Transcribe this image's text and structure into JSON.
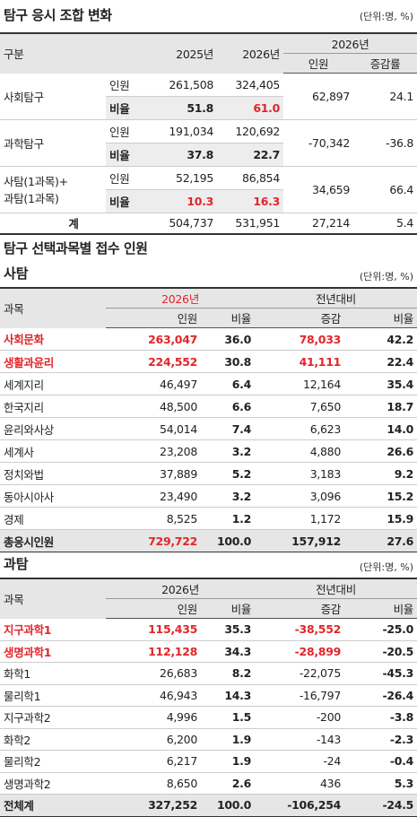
{
  "section1": {
    "title": "탐구 응시 조합 변화",
    "unit": "(단위:명, %)",
    "table": {
      "header": [
        "구분",
        "2025년",
        "2026년",
        "2026년",
        "인원",
        "증감률"
      ],
      "rows": [
        {
          "label": [
            "사회탐구"
          ],
          "sub": [
            [
              "인원",
              "261,508",
              "324,405"
            ],
            [
              "비율",
              "51.8",
              "61.0"
            ]
          ],
          "change": [
            "62,897",
            "24.1"
          ]
        },
        {
          "label": [
            "과학탐구"
          ],
          "sub": [
            [
              "인원",
              "191,034",
              "120,692"
            ],
            [
              "비율",
              "37.8",
              "22.7"
            ]
          ],
          "change": [
            "-70,342",
            "-36.8"
          ]
        },
        {
          "label": [
            "사탐(1과목)+",
            "과탐(1과목)"
          ],
          "sub": [
            [
              "인원",
              "52,195",
              "86,854"
            ],
            [
              "비율",
              "10.3",
              "16.3"
            ]
          ],
          "change": [
            "34,659",
            "66.4"
          ]
        }
      ],
      "total": [
        "계",
        "504,737",
        "531,951",
        "27,214",
        "5.4"
      ]
    }
  },
  "section2": {
    "title": "탐구 선택과목별 접수 인원",
    "subtitle": "사탐",
    "unit": "(단위:명, %)",
    "table": {
      "header": [
        "과목",
        "2026년",
        "전년대비",
        "인원",
        "비율",
        "증감",
        "비율"
      ],
      "rows": [
        [
          "사회문화",
          "263,047",
          "36.0",
          "78,033",
          "42.2"
        ],
        [
          "생활과윤리",
          "224,552",
          "30.8",
          "41,111",
          "22.4"
        ],
        [
          "세계지리",
          "46,497",
          "6.4",
          "12,164",
          "35.4"
        ],
        [
          "한국지리",
          "48,500",
          "6.6",
          "7,650",
          "18.7"
        ],
        [
          "윤리와사상",
          "54,014",
          "7.4",
          "6,623",
          "14.0"
        ],
        [
          "세계사",
          "23,208",
          "3.2",
          "4,880",
          "26.6"
        ],
        [
          "정치와법",
          "37,889",
          "5.2",
          "3,183",
          "9.2"
        ],
        [
          "동아시아사",
          "23,490",
          "3.2",
          "3,096",
          "15.2"
        ],
        [
          "경제",
          "8,525",
          "1.2",
          "1,172",
          "15.9"
        ],
        [
          "총응시인원",
          "729,722",
          "100.0",
          "157,912",
          "27.6"
        ]
      ]
    }
  },
  "section3": {
    "subtitle": "과탐",
    "unit": "(단위:명, %)",
    "table": {
      "header": [
        "과목",
        "2026년",
        "전년대비",
        "인원",
        "비율",
        "증감",
        "비율"
      ],
      "rows": [
        [
          "지구과학1",
          "115,435",
          "35.3",
          "-38,552",
          "-25.0"
        ],
        [
          "생명과학1",
          "112,128",
          "34.3",
          "-28,899",
          "-20.5"
        ],
        [
          "화학1",
          "26,683",
          "8.2",
          "-22,075",
          "-45.3"
        ],
        [
          "물리학1",
          "46,943",
          "14.3",
          "-16,797",
          "-26.4"
        ],
        [
          "지구과학2",
          "4,996",
          "1.5",
          "-200",
          "-3.8"
        ],
        [
          "화학2",
          "6,200",
          "1.9",
          "-143",
          "-2.3"
        ],
        [
          "물리학2",
          "6,217",
          "1.9",
          "-24",
          "-0.4"
        ],
        [
          "생명과학2",
          "8,650",
          "2.6",
          "436",
          "5.3"
        ],
        [
          "전체계",
          "327,252",
          "100.0",
          "-106,254",
          "-24.5"
        ]
      ]
    }
  }
}
